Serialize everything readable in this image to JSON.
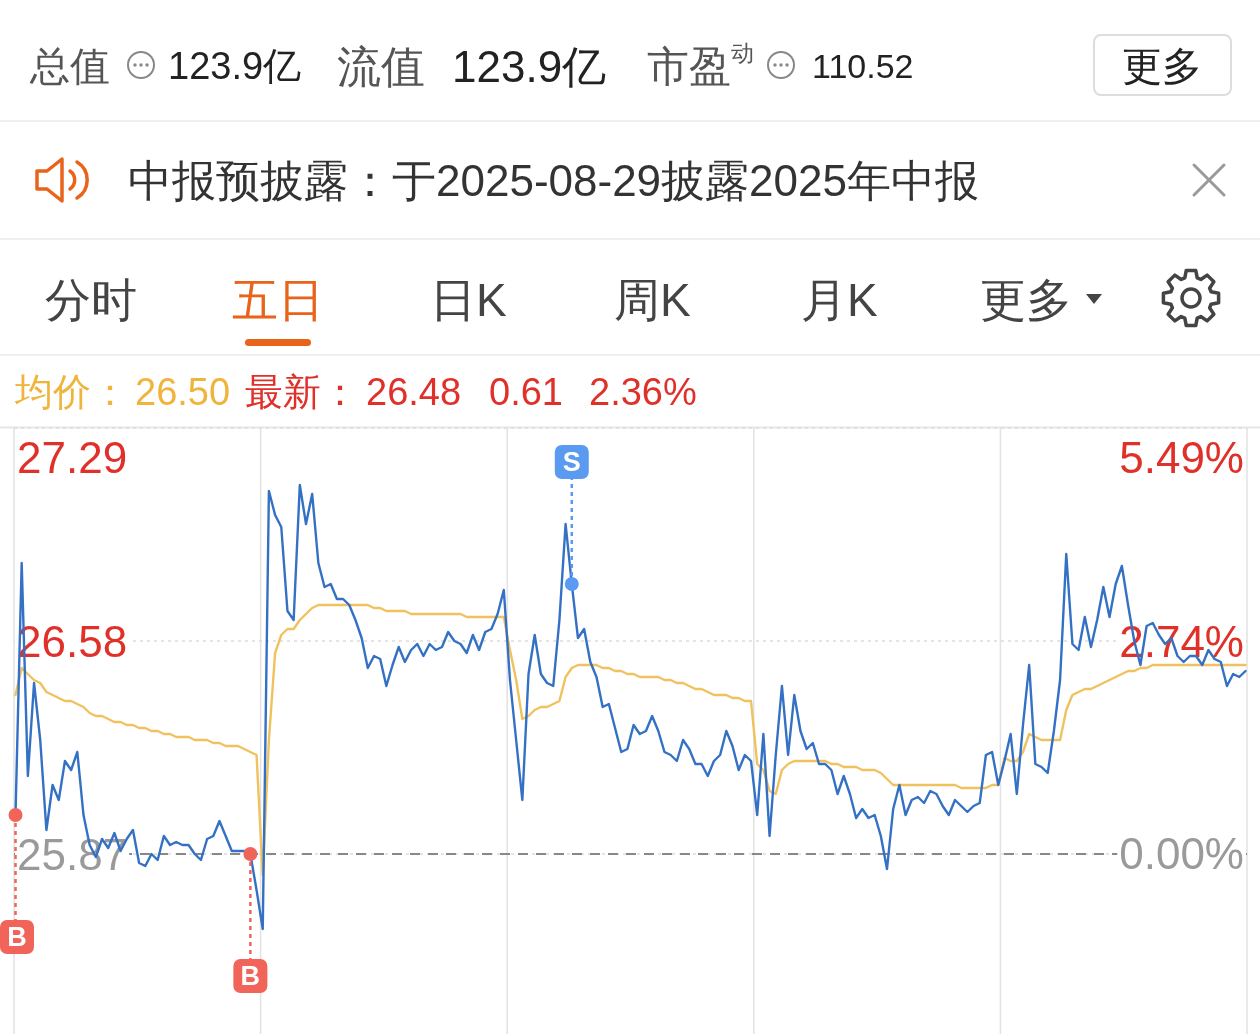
{
  "chart_data": [
    {
      "type": "other",
      "annotations": [
        "总值",
        "123.9亿",
        "流值",
        "123.9亿",
        "市盈$^{动}$",
        "110.52",
        "更多",
        "中报预披露：于2025-08-29披露2025年中报",
        "分时",
        "五日",
        "日K",
        "周K",
        "月K",
        "更多",
        "均价：",
        "26.50",
        "最新：",
        "26.48",
        "0.61",
        "2.36%"
      ]
    },
    {
      "type": "line",
      "categories": [
        null,
        null,
        null,
        null,
        null,
        null,
        null,
        null,
        null,
        null,
        null,
        null,
        null,
        null,
        null,
        null,
        null,
        null,
        null,
        null,
        null,
        null,
        null,
        null,
        null,
        null,
        null,
        null,
        null,
        null,
        null,
        null,
        null,
        null,
        null,
        null,
        null,
        null,
        null,
        null,
        null,
        null,
        null,
        null,
        null,
        null,
        null,
        null,
        null,
        null,
        null,
        null,
        null,
        null,
        null,
        null,
        null,
        null,
        null,
        null,
        null,
        null,
        null,
        null,
        null,
        null,
        null,
        null,
        null,
        null,
        null,
        null,
        null,
        null,
        null,
        null,
        null,
        null,
        null,
        null,
        null,
        null,
        null,
        null,
        null,
        null,
        null,
        null,
        null,
        null,
        null,
        null,
        null,
        null,
        null,
        null,
        null,
        null,
        null,
        null,
        null,
        null,
        null,
        null,
        null,
        null,
        null,
        null,
        null,
        null,
        null,
        null,
        null,
        null,
        null,
        null,
        null,
        null,
        null,
        null,
        null,
        null,
        null,
        null,
        null,
        null,
        null,
        null,
        null,
        null,
        null,
        null,
        null,
        null,
        null,
        null,
        null,
        null,
        null,
        null,
        null,
        null,
        null,
        null,
        null,
        null,
        null,
        null,
        null,
        null,
        null,
        null,
        null,
        null,
        null,
        null,
        null,
        null,
        null,
        null,
        null,
        null,
        null,
        null,
        null,
        null,
        null,
        null,
        null,
        null,
        null,
        null,
        null,
        null,
        null,
        null,
        null,
        null,
        null,
        null,
        null,
        null,
        null,
        null,
        null,
        null,
        null,
        null,
        null,
        null,
        null,
        null,
        null,
        null,
        null,
        null,
        null,
        null,
        null,
        null
      ],
      "series": [
        {
          "color": "#f0c25e",
          "values": [
            26.4,
            26.49,
            26.47,
            26.45,
            26.44,
            26.41,
            26.4,
            26.39,
            26.38,
            26.38,
            26.37,
            26.36,
            26.34,
            26.33,
            26.33,
            26.32,
            26.31,
            26.31,
            26.3,
            26.3,
            26.29,
            26.29,
            26.28,
            26.28,
            26.27,
            26.27,
            26.26,
            26.26,
            26.26,
            26.25,
            26.25,
            26.25,
            26.24,
            26.24,
            26.23,
            26.23,
            26.23,
            26.22,
            26.21,
            26.2,
            25.8,
            26.25,
            26.54,
            26.6,
            26.62,
            26.62,
            26.65,
            26.67,
            26.69,
            26.7,
            26.7,
            26.7,
            26.7,
            26.7,
            26.7,
            26.7,
            26.7,
            26.7,
            26.69,
            26.69,
            26.68,
            26.68,
            26.68,
            26.68,
            26.67,
            26.67,
            26.67,
            26.67,
            26.67,
            26.67,
            26.67,
            26.67,
            26.67,
            26.66,
            26.66,
            26.66,
            26.66,
            26.66,
            26.66,
            26.66,
            26.55,
            26.45,
            26.32,
            26.33,
            26.35,
            26.36,
            26.36,
            26.37,
            26.38,
            26.46,
            26.49,
            26.5,
            26.5,
            26.5,
            26.5,
            26.49,
            26.49,
            26.48,
            26.48,
            26.47,
            26.47,
            26.46,
            26.46,
            26.46,
            26.46,
            26.45,
            26.45,
            26.44,
            26.44,
            26.43,
            26.42,
            26.42,
            26.41,
            26.4,
            26.4,
            26.4,
            26.39,
            26.39,
            26.38,
            26.38,
            26.17,
            26.15,
            26.08,
            26.07,
            26.15,
            26.17,
            26.18,
            26.18,
            26.18,
            26.18,
            26.18,
            26.18,
            26.17,
            26.17,
            26.16,
            26.16,
            26.16,
            26.15,
            26.15,
            26.15,
            26.14,
            26.12,
            26.1,
            26.1,
            26.1,
            26.1,
            26.1,
            26.1,
            26.1,
            26.1,
            26.1,
            26.1,
            26.1,
            26.09,
            26.09,
            26.09,
            26.09,
            26.09,
            26.1,
            26.1,
            26.19,
            26.18,
            26.18,
            26.21,
            26.27,
            26.26,
            26.25,
            26.25,
            26.25,
            26.25,
            26.35,
            26.4,
            26.41,
            26.42,
            26.42,
            26.43,
            26.44,
            26.45,
            26.46,
            26.47,
            26.48,
            26.48,
            26.49,
            26.49,
            26.5,
            26.5,
            26.5,
            26.5,
            26.5,
            26.5,
            26.5,
            26.5,
            26.5,
            26.5,
            26.5,
            26.5,
            26.5,
            26.5,
            26.5,
            26.5
          ]
        },
        {
          "color": "#3471c4",
          "values": [
            26.0,
            26.84,
            26.13,
            26.44,
            26.25,
            25.95,
            26.1,
            26.05,
            26.18,
            26.15,
            26.21,
            26.0,
            25.9,
            25.86,
            25.92,
            25.89,
            25.94,
            25.88,
            25.92,
            25.95,
            25.84,
            25.83,
            25.87,
            25.85,
            25.93,
            25.9,
            25.91,
            25.9,
            25.9,
            25.87,
            25.85,
            25.92,
            25.93,
            25.98,
            25.93,
            25.88,
            25.88,
            25.88,
            25.87,
            25.75,
            25.62,
            27.08,
            27.0,
            26.96,
            26.68,
            26.65,
            27.1,
            26.97,
            27.07,
            26.84,
            26.76,
            26.77,
            26.72,
            26.72,
            26.7,
            26.65,
            26.59,
            26.49,
            26.53,
            26.52,
            26.43,
            26.5,
            26.56,
            26.51,
            26.55,
            26.57,
            26.53,
            26.57,
            26.55,
            26.56,
            26.61,
            26.58,
            26.57,
            26.54,
            26.6,
            26.55,
            26.61,
            26.62,
            26.67,
            26.75,
            26.45,
            26.25,
            26.05,
            26.47,
            26.6,
            26.47,
            26.44,
            26.43,
            26.65,
            26.97,
            26.77,
            26.59,
            26.62,
            26.51,
            26.46,
            26.36,
            26.37,
            26.29,
            26.21,
            26.22,
            26.3,
            26.27,
            26.28,
            26.33,
            26.28,
            26.21,
            26.2,
            26.18,
            26.25,
            26.22,
            26.17,
            26.17,
            26.13,
            26.18,
            26.2,
            26.28,
            26.23,
            26.15,
            26.2,
            26.18,
            26.0,
            26.27,
            25.93,
            26.2,
            26.43,
            26.2,
            26.4,
            26.28,
            26.22,
            26.24,
            26.17,
            26.17,
            26.15,
            26.07,
            26.13,
            26.07,
            25.99,
            26.02,
            25.99,
            26.0,
            25.93,
            25.82,
            26.02,
            26.1,
            26.0,
            26.05,
            26.06,
            26.04,
            26.08,
            26.07,
            26.03,
            26.0,
            26.05,
            26.03,
            26.01,
            26.03,
            26.04,
            26.2,
            26.21,
            26.1,
            26.18,
            26.27,
            26.07,
            26.3,
            26.5,
            26.17,
            26.16,
            26.14,
            26.28,
            26.45,
            26.87,
            26.57,
            26.55,
            26.66,
            26.56,
            26.65,
            26.76,
            26.66,
            26.77,
            26.83,
            26.7,
            26.58,
            26.5,
            26.63,
            26.64,
            26.6,
            26.57,
            26.59,
            26.53,
            26.51,
            26.53,
            26.53,
            26.5,
            26.55,
            26.52,
            26.51,
            26.43,
            26.47,
            26.46,
            26.48
          ]
        },
        {
          "type": "scatter",
          "name": "B",
          "color": "#f0645a",
          "marker": "circle",
          "values": [
            26.0,
            null,
            null,
            null,
            null,
            null,
            null,
            null,
            null,
            null,
            null,
            null,
            null,
            null,
            null,
            null,
            null,
            null,
            null,
            null,
            null,
            null,
            null,
            null,
            null,
            null,
            null,
            null,
            null,
            null,
            null,
            null,
            null,
            null,
            null,
            null,
            null,
            null,
            25.87,
            null,
            null,
            null,
            null,
            null,
            null,
            null,
            null,
            null,
            null,
            null,
            null,
            null,
            null,
            null,
            null,
            null,
            null,
            null,
            null,
            null,
            null,
            null,
            null,
            null,
            null,
            null,
            null,
            null,
            null,
            null,
            null,
            null,
            null,
            null,
            null,
            null,
            null,
            null,
            null,
            null,
            null,
            null,
            null,
            null,
            null,
            null,
            null,
            null,
            null,
            null,
            null,
            null,
            null,
            null,
            null,
            null,
            null,
            null,
            null,
            null,
            null,
            null,
            null,
            null,
            null,
            null,
            null,
            null,
            null,
            null,
            null,
            null,
            null,
            null,
            null,
            null,
            null,
            null,
            null,
            null,
            null,
            null,
            null,
            null,
            null,
            null,
            null,
            null,
            null,
            null,
            null,
            null,
            null,
            null,
            null,
            null,
            null,
            null,
            null,
            null,
            null,
            null,
            null,
            null,
            null,
            null,
            null,
            null,
            null,
            null,
            null,
            null,
            null,
            null,
            null,
            null,
            null,
            null,
            null,
            null,
            null,
            null,
            null,
            null,
            null,
            null,
            null,
            null,
            null,
            null,
            null,
            null,
            null,
            null,
            null,
            null,
            null,
            null,
            null,
            null,
            null,
            null,
            null,
            null,
            null,
            null,
            null,
            null,
            null,
            null,
            null,
            null,
            null,
            null,
            null,
            null,
            null,
            null,
            null,
            null
          ]
        },
        {
          "type": "scatter",
          "name": "S",
          "color": "#5a9af0",
          "marker": "circle",
          "values": [
            null,
            null,
            null,
            null,
            null,
            null,
            null,
            null,
            null,
            null,
            null,
            null,
            null,
            null,
            null,
            null,
            null,
            null,
            null,
            null,
            null,
            null,
            null,
            null,
            null,
            null,
            null,
            null,
            null,
            null,
            null,
            null,
            null,
            null,
            null,
            null,
            null,
            null,
            null,
            null,
            null,
            null,
            null,
            null,
            null,
            null,
            null,
            null,
            null,
            null,
            null,
            null,
            null,
            null,
            null,
            null,
            null,
            null,
            null,
            null,
            null,
            null,
            null,
            null,
            null,
            null,
            null,
            null,
            null,
            null,
            null,
            null,
            null,
            null,
            null,
            null,
            null,
            null,
            null,
            null,
            null,
            null,
            null,
            null,
            null,
            null,
            null,
            null,
            null,
            null,
            26.77,
            null,
            null,
            null,
            null,
            null,
            null,
            null,
            null,
            null,
            null,
            null,
            null,
            null,
            null,
            null,
            null,
            null,
            null,
            null,
            null,
            null,
            null,
            null,
            null,
            null,
            null,
            null,
            null,
            null,
            null,
            null,
            null,
            null,
            null,
            null,
            null,
            null,
            null,
            null,
            null,
            null,
            null,
            null,
            null,
            null,
            null,
            null,
            null,
            null,
            null,
            null,
            null,
            null,
            null,
            null,
            null,
            null,
            null,
            null,
            null,
            null,
            null,
            null,
            null,
            null,
            null,
            null,
            null,
            null,
            null,
            null,
            null,
            null,
            null,
            null,
            null,
            null,
            null,
            null,
            null,
            null,
            null,
            null,
            null,
            null,
            null,
            null,
            null,
            null,
            null,
            null,
            null,
            null,
            null,
            null,
            null,
            null,
            null,
            null,
            null,
            null,
            null,
            null,
            null,
            null,
            null,
            null,
            null,
            null
          ]
        }
      ],
      "ylim": [
        25.27,
        27.29
      ],
      "yticks": [
        27.29,
        26.58,
        25.87
      ],
      "y2lim": [
        -2.32,
        5.49
      ],
      "y2ticks": [
        {
          "value": 5.49,
          "label": "5.49%"
        },
        {
          "value": 2.74,
          "label": "2.74%"
        },
        {
          "value": 0,
          "label": "0.00%"
        }
      ],
      "grid": "y",
      "ref_lines": [
        {
          "axis": "y",
          "value": 25.87,
          "color": "#888888",
          "line_style": "dashed"
        }
      ]
    }
  ]
}
